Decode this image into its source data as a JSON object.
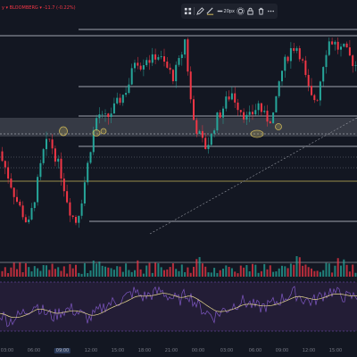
{
  "ticker": {
    "text": "y ▾  BLOOMBERG ▾  -11.7 (-0.22%)",
    "color": "#f23645"
  },
  "toolbar": {
    "line_width_label": "20px"
  },
  "time_axis": {
    "labels": [
      "03:00",
      "06:00",
      "09:00",
      "12:00",
      "15:00",
      "18:00",
      "21:00",
      "00:00",
      "03:00",
      "06:00",
      "09:00",
      "12:00",
      "15:00"
    ],
    "highlighted_label": "09:00"
  },
  "colors": {
    "background": "#131722",
    "bull": "#26a69a",
    "bear": "#f23645",
    "grid": "#2a2e39",
    "level_line": "#cfd3dc",
    "zone_fill": "#787b86",
    "marker": "#c9b458",
    "oscillator_bg": "#231d36",
    "oscillator_line": "#7e57c2",
    "signal_line": "#e8d98f"
  },
  "price_series": {
    "units": "relative price (0 = low, 100 = high)",
    "anchors": [
      [
        0,
        42
      ],
      [
        8,
        34
      ],
      [
        14,
        26
      ],
      [
        20,
        18
      ],
      [
        28,
        10
      ],
      [
        34,
        4
      ],
      [
        40,
        16
      ],
      [
        46,
        30
      ],
      [
        52,
        44
      ],
      [
        58,
        48
      ],
      [
        64,
        40
      ],
      [
        70,
        32
      ],
      [
        76,
        20
      ],
      [
        82,
        10
      ],
      [
        88,
        6
      ],
      [
        94,
        18
      ],
      [
        100,
        34
      ],
      [
        106,
        50
      ],
      [
        112,
        62
      ],
      [
        118,
        58
      ],
      [
        124,
        60
      ],
      [
        130,
        64
      ],
      [
        136,
        68
      ],
      [
        142,
        72
      ],
      [
        148,
        78
      ],
      [
        154,
        90
      ],
      [
        160,
        86
      ],
      [
        166,
        90
      ],
      [
        172,
        88
      ],
      [
        178,
        92
      ],
      [
        184,
        88
      ],
      [
        190,
        84
      ],
      [
        196,
        80
      ],
      [
        202,
        86
      ],
      [
        206,
        92
      ],
      [
        210,
        100
      ],
      [
        214,
        76
      ],
      [
        218,
        60
      ],
      [
        222,
        54
      ],
      [
        226,
        50
      ],
      [
        232,
        44
      ],
      [
        238,
        48
      ],
      [
        244,
        58
      ],
      [
        250,
        62
      ],
      [
        256,
        68
      ],
      [
        262,
        72
      ],
      [
        268,
        66
      ],
      [
        274,
        62
      ],
      [
        280,
        58
      ],
      [
        286,
        62
      ],
      [
        292,
        66
      ],
      [
        298,
        60
      ],
      [
        304,
        58
      ],
      [
        310,
        62
      ],
      [
        316,
        80
      ],
      [
        322,
        88
      ],
      [
        328,
        94
      ],
      [
        334,
        96
      ],
      [
        340,
        90
      ],
      [
        346,
        76
      ],
      [
        352,
        68
      ],
      [
        358,
        70
      ],
      [
        364,
        86
      ],
      [
        370,
        98
      ],
      [
        376,
        98
      ],
      [
        382,
        94
      ],
      [
        388,
        94
      ],
      [
        394,
        90
      ],
      [
        400,
        86
      ]
    ]
  },
  "oscillator": {
    "units": "relative (0 = low, 100 = high)",
    "anchors": [
      [
        0,
        36
      ],
      [
        10,
        20
      ],
      [
        20,
        30
      ],
      [
        30,
        42
      ],
      [
        40,
        55
      ],
      [
        50,
        38
      ],
      [
        60,
        30
      ],
      [
        70,
        42
      ],
      [
        80,
        45
      ],
      [
        90,
        35
      ],
      [
        100,
        25
      ],
      [
        110,
        40
      ],
      [
        120,
        55
      ],
      [
        130,
        60
      ],
      [
        140,
        68
      ],
      [
        150,
        80
      ],
      [
        160,
        70
      ],
      [
        170,
        75
      ],
      [
        180,
        82
      ],
      [
        190,
        70
      ],
      [
        200,
        62
      ],
      [
        210,
        78
      ],
      [
        220,
        55
      ],
      [
        230,
        40
      ],
      [
        240,
        30
      ],
      [
        250,
        42
      ],
      [
        260,
        50
      ],
      [
        270,
        62
      ],
      [
        280,
        55
      ],
      [
        290,
        48
      ],
      [
        300,
        52
      ],
      [
        310,
        60
      ],
      [
        320,
        70
      ],
      [
        330,
        78
      ],
      [
        340,
        65
      ],
      [
        350,
        60
      ],
      [
        360,
        72
      ],
      [
        370,
        82
      ],
      [
        380,
        75
      ],
      [
        390,
        68
      ],
      [
        400,
        72
      ]
    ]
  }
}
